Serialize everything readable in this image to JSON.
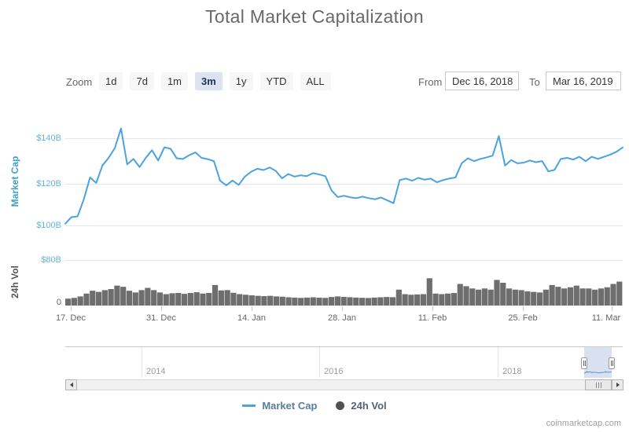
{
  "title": "Total Market Capitalization",
  "credit": "coinmarketcap.com",
  "range_selector": {
    "zoom_label": "Zoom",
    "buttons": [
      "1d",
      "7d",
      "1m",
      "3m",
      "1y",
      "YTD",
      "ALL"
    ],
    "selected": "3m",
    "from_label": "From",
    "from_value": "Dec 16, 2018",
    "to_label": "To",
    "to_value": "Mar 16, 2019"
  },
  "axes": {
    "market_cap": {
      "title": "Market Cap",
      "ticks": [
        "$140B",
        "$120B",
        "$100B"
      ]
    },
    "volume": {
      "title": "24h Vol",
      "ticks": [
        "$80B",
        "0"
      ]
    }
  },
  "legend": {
    "items": [
      {
        "label": "Market Cap",
        "symbol": "line"
      },
      {
        "label": "24h Vol",
        "symbol": "circle"
      }
    ]
  },
  "colors": {
    "line": "#4aa3df",
    "volume": "#6e6e6e",
    "grid": "#e6e6e6",
    "axis_label_blue": "#63b4dc",
    "axis_title_blue": "#3f9fd0",
    "axis_title_gray": "#555555",
    "selected_button_bg": "#dde3f0",
    "navigator_mask": "rgba(102,133,194,0.25)",
    "legend_market_cap_text": "#5a7d99",
    "legend_vol_text": "#53626e"
  },
  "chart_data": {
    "type": "line",
    "title": "Total Market Capitalization",
    "x_range": {
      "from": "Dec 16, 2018",
      "to": "Mar 16, 2019",
      "interval": "daily"
    },
    "x_tick_labels": [
      "17. Dec",
      "31. Dec",
      "14. Jan",
      "28. Jan",
      "11. Feb",
      "25. Feb",
      "11. Mar"
    ],
    "navigator": {
      "year_labels": [
        "2014",
        "2016",
        "2018"
      ]
    },
    "series": [
      {
        "name": "Market Cap",
        "type": "line",
        "unit": "USD billions",
        "ylim": [
          96,
          147
        ],
        "axis_ticks": [
          100,
          120,
          140
        ],
        "grid": true,
        "values": [
          100.8,
          103.8,
          104.2,
          112.0,
          122.0,
          119.5,
          127.5,
          131.0,
          135.5,
          144.5,
          128.0,
          130.5,
          126.8,
          131.0,
          134.5,
          129.8,
          135.8,
          135.2,
          130.8,
          130.5,
          132.2,
          133.5,
          131.0,
          130.4,
          129.5,
          120.5,
          118.4,
          120.6,
          118.6,
          122.4,
          124.6,
          126.0,
          125.4,
          126.6,
          125.0,
          121.6,
          123.6,
          122.4,
          123.0,
          122.6,
          124.0,
          123.4,
          122.6,
          116.0,
          113.0,
          113.6,
          112.9,
          112.5,
          113.2,
          112.5,
          112.0,
          112.8,
          111.5,
          110.2,
          120.8,
          121.5,
          120.5,
          121.8,
          121.0,
          121.5,
          119.8,
          120.8,
          121.5,
          122.0,
          128.5,
          130.8,
          129.5,
          130.5,
          131.2,
          132.0,
          141.0,
          127.5,
          130.0,
          128.5,
          128.8,
          129.8,
          129.0,
          129.5,
          124.8,
          125.5,
          130.5,
          131.0,
          130.2,
          131.5,
          129.5,
          131.5,
          130.5,
          131.5,
          132.5,
          133.8,
          135.8
        ]
      },
      {
        "name": "24h Vol",
        "type": "column",
        "unit": "USD billions",
        "ylim": [
          0,
          80
        ],
        "axis_ticks": [
          0,
          80
        ],
        "grid": true,
        "values": [
          12,
          13.5,
          16,
          21,
          26,
          24,
          27,
          29,
          35,
          33,
          26,
          23,
          27,
          31,
          27,
          23,
          20,
          21.5,
          22,
          20.5,
          22,
          23.5,
          21,
          22,
          36,
          26.5,
          27,
          22.5,
          20,
          19,
          18,
          17,
          16.5,
          17,
          16,
          15.5,
          14.5,
          14,
          13.5,
          14,
          14.5,
          13.8,
          13.5,
          15,
          16,
          15.2,
          14.6,
          14,
          13.6,
          13.2,
          14,
          14.5,
          15,
          14.6,
          28,
          20,
          19,
          19.5,
          20,
          48,
          21,
          20,
          21,
          22,
          38,
          34,
          30,
          28,
          30,
          28,
          45,
          40,
          30,
          28,
          27,
          25,
          24,
          23,
          28,
          36,
          33,
          30,
          32,
          35,
          30,
          30,
          28,
          30,
          32,
          38,
          42
        ]
      }
    ]
  }
}
